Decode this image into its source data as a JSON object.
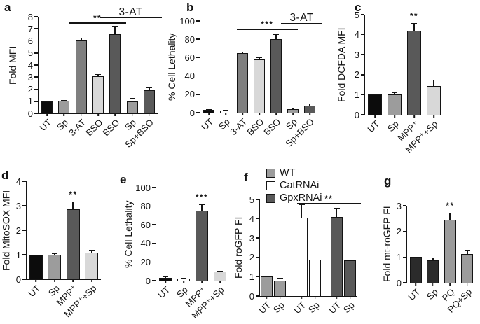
{
  "palette": {
    "black": "#0c0c0c",
    "charcoal": "#2b2b2b",
    "dark": "#595959",
    "gray": "#7f7f7f",
    "medium": "#9c9c9c",
    "light": "#d8d8d8",
    "white": "#ffffff",
    "axis": "#141414"
  },
  "chart_data": [
    {
      "panel_label": "a",
      "type": "bar",
      "ylabel": "Fold MFI",
      "ylim": [
        0,
        8
      ],
      "yticks": [
        0,
        1,
        2,
        3,
        4,
        5,
        6,
        7,
        8
      ],
      "categories": [
        "UT",
        "Sp",
        "3-AT",
        "BSO",
        "BSO",
        "Sp",
        "Sp+BSO"
      ],
      "values": [
        1.0,
        1.05,
        6.1,
        3.1,
        6.55,
        1.0,
        1.9
      ],
      "errors": [
        0,
        0.06,
        0.18,
        0.15,
        0.7,
        0.28,
        0.25
      ],
      "bar_colors": [
        "black",
        "medium",
        "gray",
        "light",
        "dark",
        "medium",
        "dark"
      ],
      "bar_width_pct": 66,
      "annotations": [
        {
          "kind": "line",
          "text": "**",
          "from_bar": 1.3,
          "to_bar": 4.65,
          "y": 7.55
        },
        {
          "kind": "line",
          "text": "3-AT",
          "from_bar": 3.1,
          "to_edge": true,
          "y": 7.97,
          "text_style": "plain"
        }
      ]
    },
    {
      "panel_label": "b",
      "type": "bar",
      "ylabel": "% Cell Lethality",
      "ylim": [
        0,
        100
      ],
      "yticks": [
        0,
        20,
        40,
        60,
        80,
        100
      ],
      "categories": [
        "UT",
        "Sp",
        "3-AT",
        "BSO",
        "BSO",
        "Sp",
        "Sp+BSO"
      ],
      "values": [
        3,
        2.5,
        65,
        58,
        80.5,
        4,
        8
      ],
      "errors": [
        1.2,
        0.8,
        1.5,
        2,
        5,
        1,
        2
      ],
      "bar_colors": [
        "black",
        "white",
        "gray",
        "light",
        "dark",
        "medium",
        "dark"
      ],
      "bar_width_pct": 66,
      "annotations": [
        {
          "kind": "line",
          "text": "***",
          "from_bar": 1.65,
          "to_bar": 5.3,
          "y": 91.5
        },
        {
          "kind": "line",
          "text": "3-AT",
          "from_bar": 4.3,
          "to_edge": true,
          "y": 97.5,
          "text_style": "plain"
        }
      ]
    },
    {
      "panel_label": "c",
      "type": "bar",
      "ylabel": "Fold DCFDA MFI",
      "ylim": [
        0,
        5
      ],
      "yticks": [
        0,
        1,
        2,
        3,
        4,
        5
      ],
      "categories": [
        "UT",
        "Sp",
        "MPP⁺",
        "MPP⁺+Sp"
      ],
      "values": [
        1.0,
        1.0,
        4.2,
        1.45
      ],
      "errors": [
        0,
        0.12,
        0.38,
        0.3
      ],
      "bar_colors": [
        "black",
        "medium",
        "dark",
        "light"
      ],
      "bar_width_pct": 70,
      "annotations": [
        {
          "kind": "star",
          "text": "**",
          "bar": 2
        }
      ]
    },
    {
      "panel_label": "d",
      "type": "bar",
      "ylabel": "Fold MitoSOX MFI",
      "ylim": [
        0,
        4
      ],
      "yticks": [
        0,
        1,
        2,
        3,
        4
      ],
      "categories": [
        "UT",
        "Sp",
        "MPP⁺",
        "MPP⁺+Sp"
      ],
      "values": [
        1.0,
        1.0,
        2.85,
        1.1
      ],
      "errors": [
        0,
        0.07,
        0.33,
        0.1
      ],
      "bar_colors": [
        "black",
        "medium",
        "dark",
        "light"
      ],
      "bar_width_pct": 70,
      "annotations": [
        {
          "kind": "star",
          "text": "**",
          "bar": 2
        }
      ]
    },
    {
      "panel_label": "e",
      "type": "bar",
      "ylabel": "% Cell Lethality",
      "ylim": [
        0,
        100
      ],
      "yticks": [
        0,
        20,
        40,
        60,
        80,
        100
      ],
      "categories": [
        "UT",
        "Sp",
        "MPP⁺",
        "MPP⁺+Sp"
      ],
      "values": [
        3,
        2.5,
        75,
        9.5
      ],
      "errors": [
        1.5,
        0.8,
        7,
        1.2
      ],
      "bar_colors": [
        "black",
        "white",
        "dark",
        "light"
      ],
      "bar_width_pct": 70,
      "annotations": [
        {
          "kind": "star",
          "text": "***",
          "bar": 2
        }
      ]
    },
    {
      "panel_label": "f",
      "type": "bar",
      "ylabel": "Fold roGFP FI",
      "ylim": [
        0,
        5
      ],
      "yticks": [
        0,
        1,
        2,
        3,
        4,
        5
      ],
      "categories": [
        "UT",
        "Sp",
        "UT",
        "Sp",
        "UT",
        "Sp"
      ],
      "values": [
        1.0,
        0.8,
        4.05,
        1.9,
        4.1,
        1.85
      ],
      "errors": [
        0,
        0.13,
        0.68,
        0.7,
        0.45,
        0.4
      ],
      "bar_colors": [
        "medium",
        "medium",
        "white",
        "white",
        "dark",
        "dark"
      ],
      "bar_width_pct": 86,
      "gap_after": [
        1,
        3
      ],
      "legend": [
        {
          "label": "WT",
          "color": "medium"
        },
        {
          "label": "CatRNAi",
          "color": "white"
        },
        {
          "label": "GpxRNAi",
          "color": "dark"
        }
      ],
      "annotations": [
        {
          "kind": "line",
          "text": "**",
          "from_bar": 1.78,
          "to_edge": true,
          "y": 4.82
        }
      ]
    },
    {
      "panel_label": "g",
      "type": "bar",
      "ylabel": "Fold mt-roGFP FI",
      "ylim": [
        0,
        3
      ],
      "yticks": [
        0,
        1,
        2,
        3
      ],
      "categories": [
        "UT",
        "Sp",
        "PQ",
        "PQ+Sp"
      ],
      "values": [
        1.0,
        0.88,
        2.45,
        1.12
      ],
      "errors": [
        0,
        0.1,
        0.28,
        0.15
      ],
      "bar_colors": [
        "charcoal",
        "charcoal",
        "medium",
        "medium"
      ],
      "bar_width_pct": 70,
      "annotations": [
        {
          "kind": "star",
          "text": "**",
          "bar": 2
        }
      ]
    }
  ]
}
